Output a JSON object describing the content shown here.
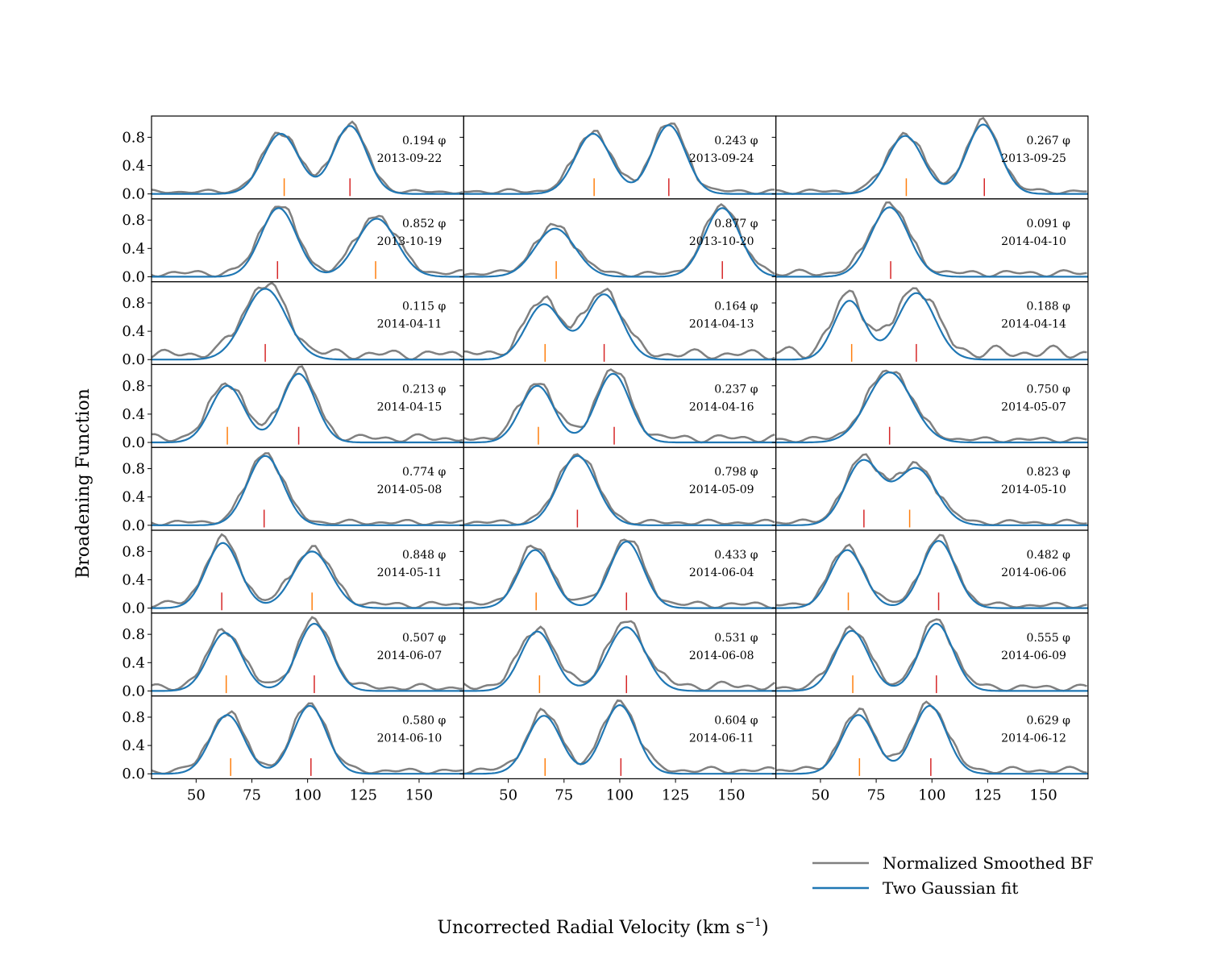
{
  "chart_data": {
    "type": "line",
    "xlabel": "Uncorrected Radial Velocity (km s",
    "xlabel_sup": "−1",
    "xlabel_close": ")",
    "ylabel": "Broadening Function",
    "xlim": [
      30,
      170
    ],
    "ylim": [
      -0.07,
      1.1
    ],
    "xticks": [
      50,
      75,
      100,
      125,
      150
    ],
    "yticks": [
      0.0,
      0.4,
      0.8
    ],
    "ytick_labels": [
      "0.0",
      "0.4",
      "0.8"
    ],
    "phase_suffix": "φ",
    "legend": {
      "position": "bottom-right",
      "entries": [
        {
          "label": "Normalized Smoothed BF",
          "color": "#808080"
        },
        {
          "label": "Two Gaussian fit",
          "color": "#1f77b4"
        }
      ]
    },
    "colors": {
      "fit": "#1f77b4",
      "bf": "#808080",
      "primary": "#d62728",
      "secondary": "#ff7f0e"
    },
    "panels": [
      {
        "phase": "0.194",
        "date": "2013-09-22",
        "peaks": [
          {
            "center": 88,
            "amp": 0.85,
            "sigma": 8,
            "mark": 89.5,
            "color": "#ff7f0e"
          },
          {
            "center": 119,
            "amp": 0.96,
            "sigma": 7.5,
            "mark": 119,
            "color": "#d62728"
          }
        ],
        "baseline": 0.06
      },
      {
        "phase": "0.243",
        "date": "2013-09-24",
        "peaks": [
          {
            "center": 88,
            "amp": 0.85,
            "sigma": 8,
            "mark": 88.5,
            "color": "#ff7f0e"
          },
          {
            "center": 122,
            "amp": 0.97,
            "sigma": 7.5,
            "mark": 122,
            "color": "#d62728"
          }
        ],
        "baseline": 0.07
      },
      {
        "phase": "0.267",
        "date": "2013-09-25",
        "peaks": [
          {
            "center": 88,
            "amp": 0.82,
            "sigma": 8,
            "mark": 88.5,
            "color": "#ff7f0e"
          },
          {
            "center": 123,
            "amp": 0.98,
            "sigma": 7.5,
            "mark": 123.5,
            "color": "#d62728"
          }
        ],
        "baseline": 0.07
      },
      {
        "phase": "0.852",
        "date": "2013-10-19",
        "peaks": [
          {
            "center": 87,
            "amp": 0.97,
            "sigma": 8,
            "mark": 86.5,
            "color": "#d62728"
          },
          {
            "center": 131,
            "amp": 0.82,
            "sigma": 9,
            "mark": 130.5,
            "color": "#ff7f0e"
          }
        ],
        "baseline": 0.1
      },
      {
        "phase": "0.877",
        "date": "2013-10-20",
        "peaks": [
          {
            "center": 71,
            "amp": 0.68,
            "sigma": 9,
            "mark": 71.5,
            "color": "#ff7f0e"
          },
          {
            "center": 146,
            "amp": 0.97,
            "sigma": 8,
            "mark": 146,
            "color": "#d62728"
          }
        ],
        "baseline": 0.08
      },
      {
        "phase": "0.091",
        "date": "2014-04-10",
        "peaks": [
          {
            "center": 81,
            "amp": 0.98,
            "sigma": 8.5,
            "mark": 81.5,
            "color": "#d62728"
          }
        ],
        "baseline": 0.1
      },
      {
        "phase": "0.115",
        "date": "2014-04-11",
        "peaks": [
          {
            "center": 81,
            "amp": 1.0,
            "sigma": 9.5,
            "mark": 81,
            "color": "#d62728"
          }
        ],
        "baseline": 0.15
      },
      {
        "phase": "0.164",
        "date": "2014-04-13",
        "peaks": [
          {
            "center": 66,
            "amp": 0.78,
            "sigma": 8,
            "mark": 66.5,
            "color": "#ff7f0e"
          },
          {
            "center": 93,
            "amp": 0.92,
            "sigma": 8,
            "mark": 93,
            "color": "#d62728"
          }
        ],
        "baseline": 0.15
      },
      {
        "phase": "0.188",
        "date": "2014-04-14",
        "peaks": [
          {
            "center": 63,
            "amp": 0.83,
            "sigma": 7,
            "mark": 64,
            "color": "#ff7f0e"
          },
          {
            "center": 93,
            "amp": 0.94,
            "sigma": 8.5,
            "mark": 93,
            "color": "#d62728"
          }
        ],
        "baseline": 0.2
      },
      {
        "phase": "0.213",
        "date": "2014-04-15",
        "peaks": [
          {
            "center": 64,
            "amp": 0.8,
            "sigma": 7.5,
            "mark": 64,
            "color": "#ff7f0e"
          },
          {
            "center": 96,
            "amp": 0.97,
            "sigma": 7.5,
            "mark": 96,
            "color": "#d62728"
          }
        ],
        "baseline": 0.12
      },
      {
        "phase": "0.237",
        "date": "2014-04-16",
        "peaks": [
          {
            "center": 63,
            "amp": 0.8,
            "sigma": 7.5,
            "mark": 63.5,
            "color": "#ff7f0e"
          },
          {
            "center": 97,
            "amp": 0.97,
            "sigma": 7.5,
            "mark": 97.5,
            "color": "#d62728"
          }
        ],
        "baseline": 0.12
      },
      {
        "phase": "0.750",
        "date": "2014-05-07",
        "peaks": [
          {
            "center": 81,
            "amp": 0.99,
            "sigma": 10,
            "mark": 81,
            "color": "#d62728"
          }
        ],
        "baseline": 0.08
      },
      {
        "phase": "0.774",
        "date": "2014-05-08",
        "peaks": [
          {
            "center": 81,
            "amp": 0.98,
            "sigma": 8,
            "mark": 80.5,
            "color": "#d62728"
          }
        ],
        "baseline": 0.08
      },
      {
        "phase": "0.798",
        "date": "2014-05-09",
        "peaks": [
          {
            "center": 81,
            "amp": 0.98,
            "sigma": 8.5,
            "mark": 81,
            "color": "#d62728"
          }
        ],
        "baseline": 0.08
      },
      {
        "phase": "0.823",
        "date": "2014-05-10",
        "peaks": [
          {
            "center": 69,
            "amp": 0.9,
            "sigma": 8,
            "mark": 69.5,
            "color": "#d62728"
          },
          {
            "center": 93,
            "amp": 0.8,
            "sigma": 9,
            "mark": 90,
            "color": "#ff7f0e"
          }
        ],
        "baseline": 0.08
      },
      {
        "phase": "0.848",
        "date": "2014-05-11",
        "peaks": [
          {
            "center": 62,
            "amp": 0.92,
            "sigma": 7.5,
            "mark": 61.5,
            "color": "#d62728"
          },
          {
            "center": 102,
            "amp": 0.8,
            "sigma": 8.5,
            "mark": 102,
            "color": "#ff7f0e"
          }
        ],
        "baseline": 0.1
      },
      {
        "phase": "0.433",
        "date": "2014-06-04",
        "peaks": [
          {
            "center": 62,
            "amp": 0.82,
            "sigma": 7.5,
            "mark": 62.5,
            "color": "#ff7f0e"
          },
          {
            "center": 103,
            "amp": 0.94,
            "sigma": 7.5,
            "mark": 103,
            "color": "#d62728"
          }
        ],
        "baseline": 0.1
      },
      {
        "phase": "0.482",
        "date": "2014-06-06",
        "peaks": [
          {
            "center": 62,
            "amp": 0.82,
            "sigma": 7.5,
            "mark": 62.5,
            "color": "#ff7f0e"
          },
          {
            "center": 103,
            "amp": 0.95,
            "sigma": 7.5,
            "mark": 103,
            "color": "#d62728"
          }
        ],
        "baseline": 0.08
      },
      {
        "phase": "0.507",
        "date": "2014-06-07",
        "peaks": [
          {
            "center": 63,
            "amp": 0.82,
            "sigma": 7.5,
            "mark": 63.5,
            "color": "#ff7f0e"
          },
          {
            "center": 103,
            "amp": 0.95,
            "sigma": 7.5,
            "mark": 103,
            "color": "#d62728"
          }
        ],
        "baseline": 0.1
      },
      {
        "phase": "0.531",
        "date": "2014-06-08",
        "peaks": [
          {
            "center": 63,
            "amp": 0.84,
            "sigma": 7.5,
            "mark": 64,
            "color": "#ff7f0e"
          },
          {
            "center": 103,
            "amp": 0.9,
            "sigma": 8.5,
            "mark": 103,
            "color": "#d62728"
          }
        ],
        "baseline": 0.14
      },
      {
        "phase": "0.555",
        "date": "2014-06-09",
        "peaks": [
          {
            "center": 64,
            "amp": 0.85,
            "sigma": 7.5,
            "mark": 64.5,
            "color": "#ff7f0e"
          },
          {
            "center": 102,
            "amp": 0.95,
            "sigma": 7.5,
            "mark": 102,
            "color": "#d62728"
          }
        ],
        "baseline": 0.1
      },
      {
        "phase": "0.580",
        "date": "2014-06-10",
        "peaks": [
          {
            "center": 64,
            "amp": 0.83,
            "sigma": 7.5,
            "mark": 65.5,
            "color": "#ff7f0e"
          },
          {
            "center": 101,
            "amp": 0.96,
            "sigma": 7.5,
            "mark": 101.5,
            "color": "#d62728"
          }
        ],
        "baseline": 0.08
      },
      {
        "phase": "0.604",
        "date": "2014-06-11",
        "peaks": [
          {
            "center": 66,
            "amp": 0.82,
            "sigma": 7.5,
            "mark": 66.5,
            "color": "#ff7f0e"
          },
          {
            "center": 100,
            "amp": 0.97,
            "sigma": 7.5,
            "mark": 100.5,
            "color": "#d62728"
          }
        ],
        "baseline": 0.1
      },
      {
        "phase": "0.629",
        "date": "2014-06-12",
        "peaks": [
          {
            "center": 67,
            "amp": 0.83,
            "sigma": 7.5,
            "mark": 67.5,
            "color": "#ff7f0e"
          },
          {
            "center": 99,
            "amp": 0.96,
            "sigma": 7.5,
            "mark": 99.5,
            "color": "#d62728"
          }
        ],
        "baseline": 0.1
      }
    ]
  }
}
